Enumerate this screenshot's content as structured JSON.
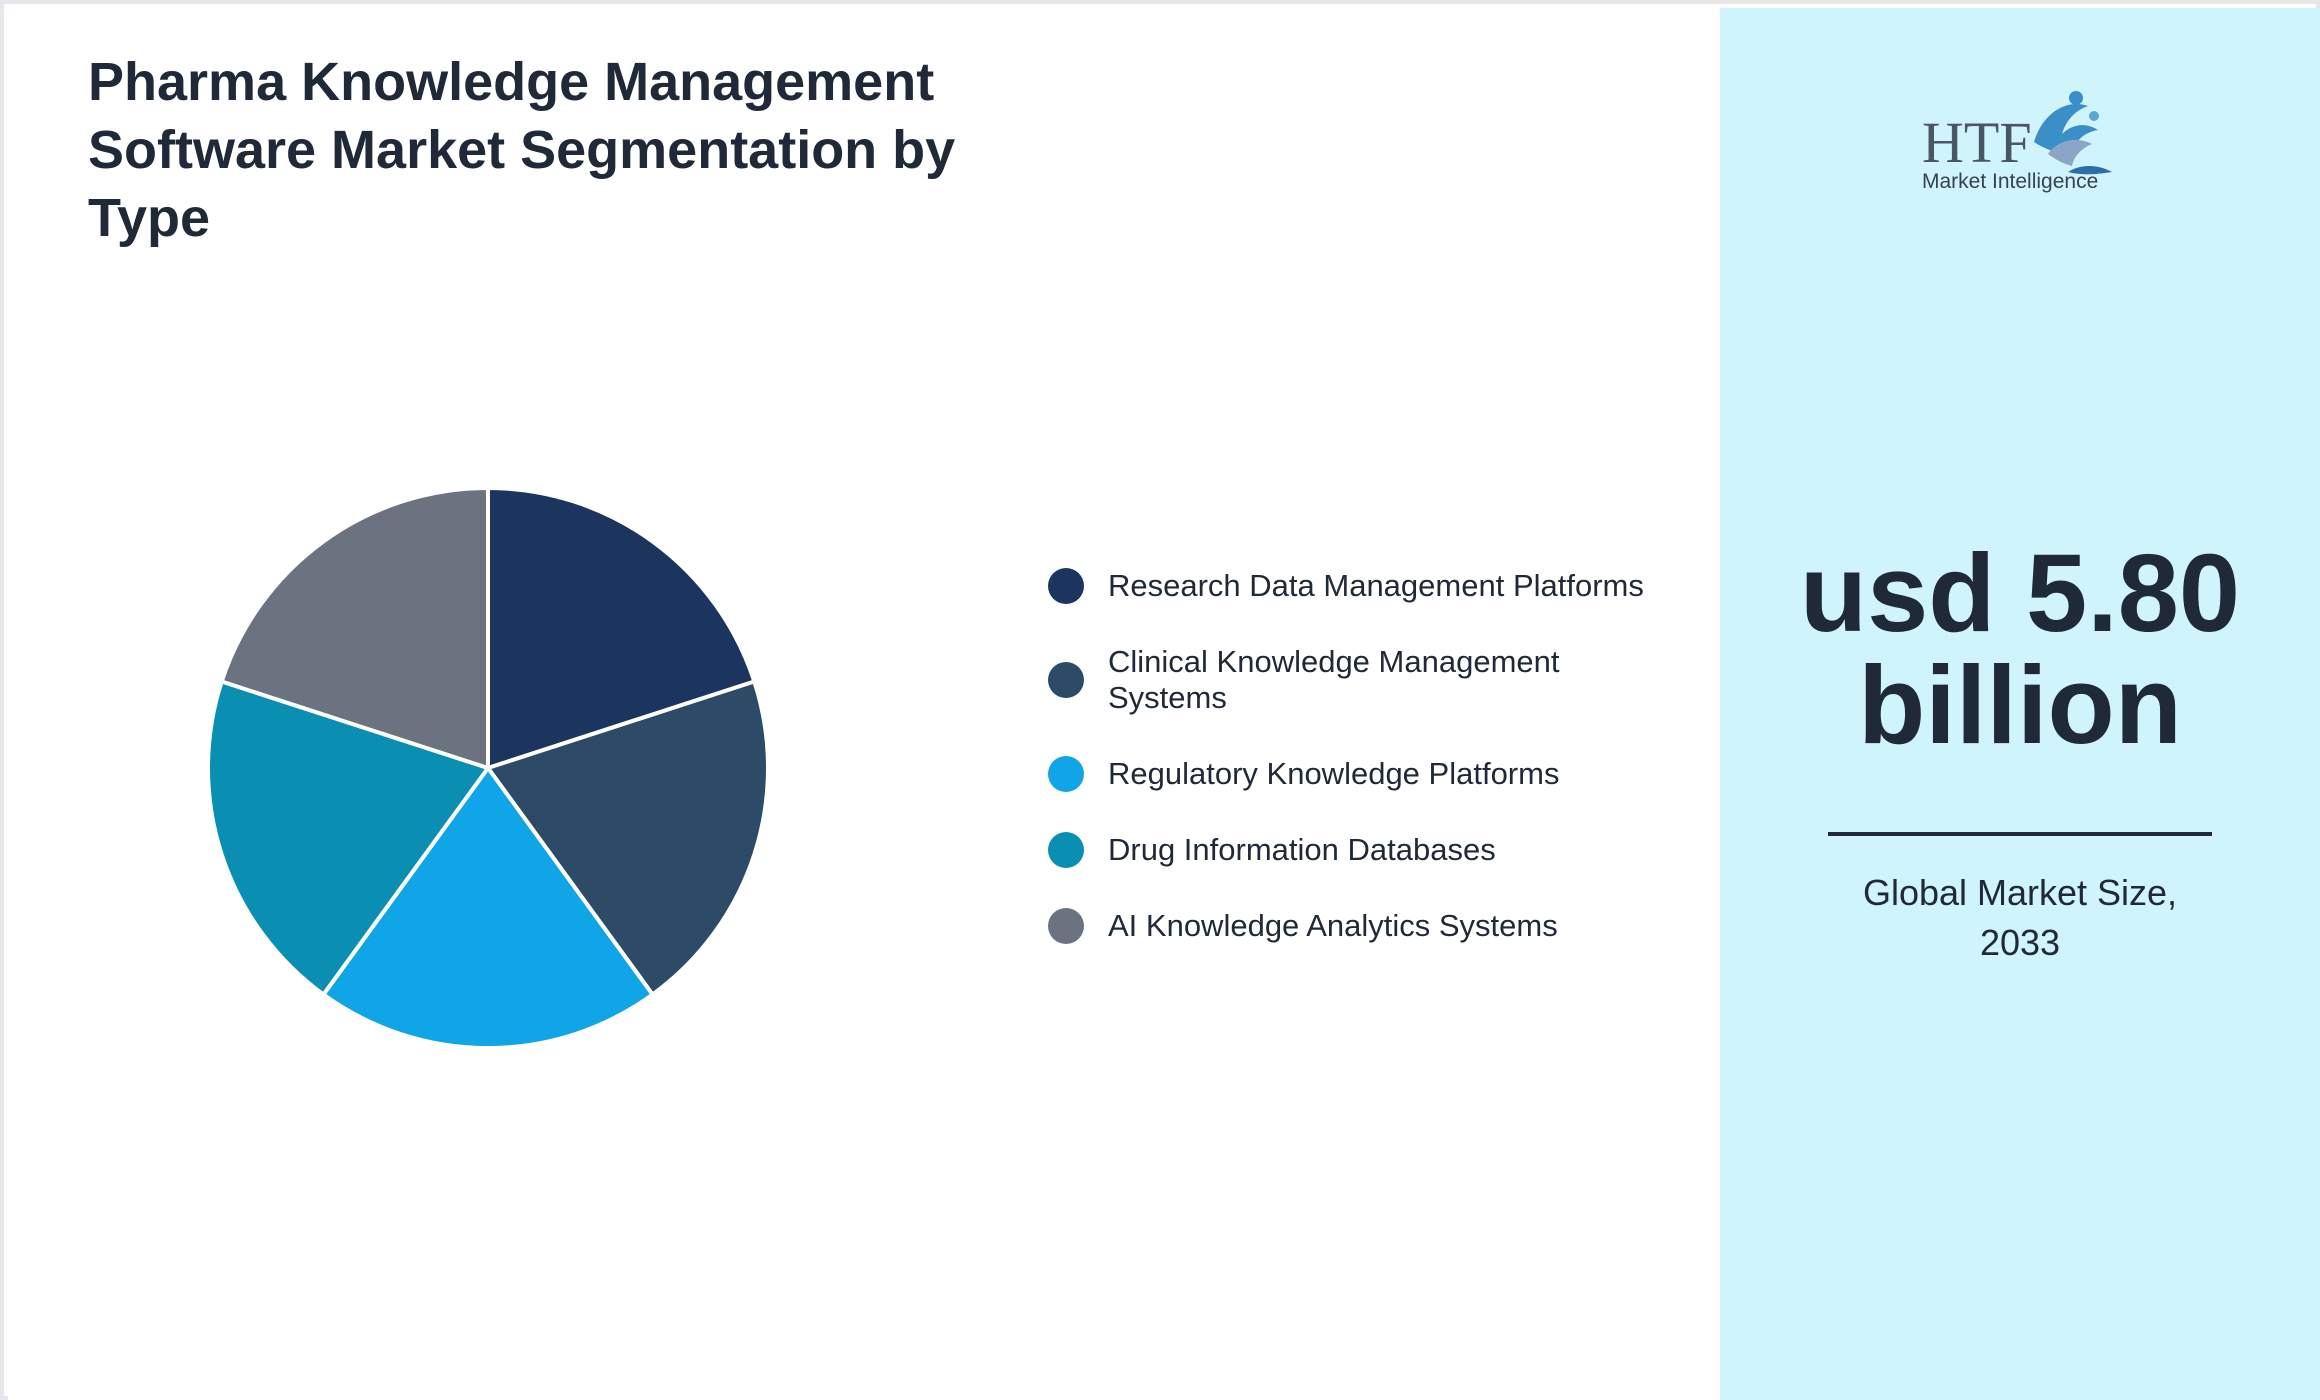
{
  "title": "Pharma Knowledge Management Software Market Segmentation by Type",
  "logo": {
    "text_main": "HTF",
    "text_sub": "Market Intelligence",
    "icon": "htf-dolphin-logo-icon"
  },
  "market": {
    "value_line1": "usd 5.80",
    "value_line2": "billion",
    "caption_line1": "Global Market Size,",
    "caption_line2": "2033"
  },
  "colors": {
    "title_text": "#1f2937",
    "right_panel_bg": "#cff4fc",
    "slice_border": "#ffffff"
  },
  "chart_data": {
    "type": "pie",
    "title": "Pharma Knowledge Management Software Market Segmentation by Type",
    "categories": [
      "Research Data Management Platforms",
      "Clinical Knowledge Management Systems",
      "Regulatory Knowledge Platforms",
      "Drug Information Databases",
      "AI Knowledge Analytics Systems"
    ],
    "values": [
      20,
      20,
      20,
      20,
      20
    ],
    "colors": [
      "#1b355e",
      "#2d4a66",
      "#10a5e6",
      "#0a8fb3",
      "#6b7280"
    ],
    "start_angle_deg": 0,
    "direction": "clockwise",
    "legend_position": "right"
  }
}
